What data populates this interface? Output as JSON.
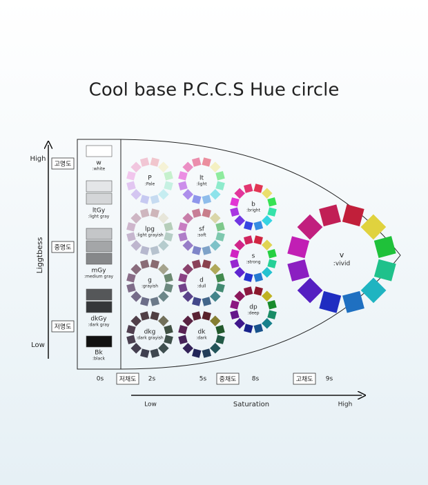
{
  "title": "Cool base P.C.C.S Hue circle",
  "lightness_axis": {
    "label": "Liggtbess",
    "high": "High",
    "low": "Low",
    "levels": [
      "고명도",
      "중명도",
      "저명도"
    ]
  },
  "grays": [
    {
      "code": "w",
      "name": ":white"
    },
    {
      "code": "ltGy",
      "name": ":light gray"
    },
    {
      "code": "mGy",
      "name": ":medium gray"
    },
    {
      "code": "dkGy",
      "name": ":dark gray"
    },
    {
      "code": "Bk",
      "name": ":black"
    }
  ],
  "tones": [
    {
      "code": "P",
      "name": ":Pale"
    },
    {
      "code": "lt",
      "name": ":light"
    },
    {
      "code": "lpg",
      "name": ":light grayish"
    },
    {
      "code": "sf",
      "name": ":soft"
    },
    {
      "code": "g",
      "name": ":grayish"
    },
    {
      "code": "d",
      "name": ":dull"
    },
    {
      "code": "dkg",
      "name": ":dark grayish"
    },
    {
      "code": "dk",
      "name": ":dark"
    },
    {
      "code": "b",
      "name": ":bright"
    },
    {
      "code": "s",
      "name": ":strong"
    },
    {
      "code": "dp",
      "name": ":deep"
    },
    {
      "code": "v",
      "name": ":vivid"
    }
  ],
  "saturation_axis": {
    "ticks": [
      "0s",
      "2s",
      "5s",
      "8s",
      "9s"
    ],
    "levels": [
      "저채도",
      "중채도",
      "고채도"
    ],
    "low": "Low",
    "label": "Saturation",
    "high": "High"
  }
}
